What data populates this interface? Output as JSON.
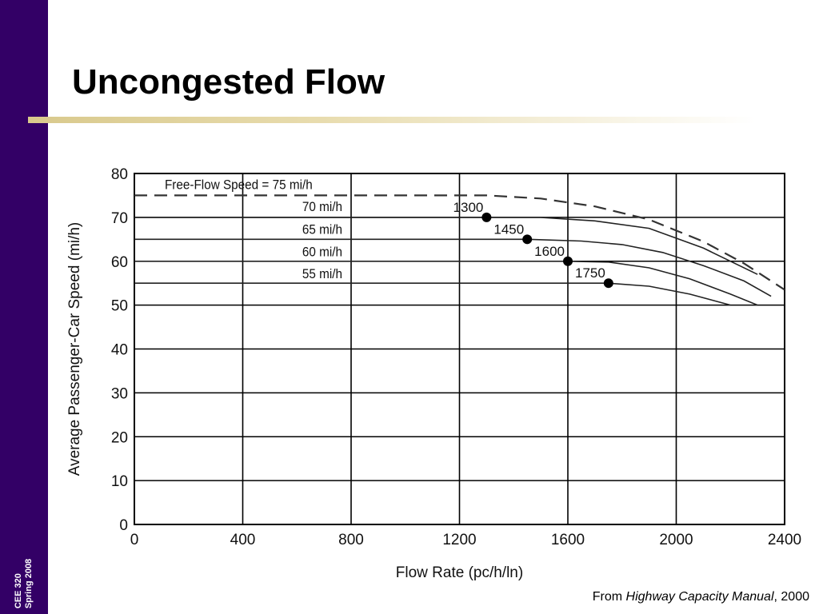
{
  "sidebar": {
    "course": "CEE 320",
    "term": "Spring 2008"
  },
  "slide": {
    "title": "Uncongested Flow"
  },
  "source": {
    "prefix": "From ",
    "work": "Highway Capacity Manual",
    "suffix": ", 2000"
  },
  "colors": {
    "sidebar": "#330066",
    "accent_rule": "#d9c98c"
  },
  "chart_data": {
    "type": "line",
    "xlabel": "Flow Rate (pc/h/ln)",
    "ylabel": "Average Passenger-Car Speed (mi/h)",
    "xlim": [
      0,
      2400
    ],
    "ylim": [
      0,
      80
    ],
    "xticks": [
      0,
      400,
      800,
      1200,
      1600,
      2000,
      2400
    ],
    "yticks": [
      0,
      10,
      20,
      30,
      40,
      50,
      60,
      70,
      80
    ],
    "grid": true,
    "series": [
      {
        "name": "Free-Flow Speed = 75 mi/h",
        "dashed": true,
        "points": [
          [
            0,
            75
          ],
          [
            1300,
            75
          ],
          [
            1500,
            74.3
          ],
          [
            1700,
            72.5
          ],
          [
            1900,
            69.5
          ],
          [
            2100,
            64.5
          ],
          [
            2250,
            59.5
          ],
          [
            2400,
            53.5
          ]
        ]
      },
      {
        "name": "70 mi/h",
        "points": [
          [
            0,
            70
          ],
          [
            1300,
            70
          ],
          [
            1500,
            70
          ],
          [
            1700,
            69.2
          ],
          [
            1900,
            67.5
          ],
          [
            2100,
            63
          ],
          [
            2300,
            57
          ]
        ]
      },
      {
        "name": "65 mi/h",
        "points": [
          [
            0,
            65
          ],
          [
            1450,
            65
          ],
          [
            1650,
            64.6
          ],
          [
            1800,
            63.8
          ],
          [
            1950,
            62
          ],
          [
            2100,
            59
          ],
          [
            2250,
            55.5
          ],
          [
            2350,
            52
          ]
        ]
      },
      {
        "name": "60 mi/h",
        "points": [
          [
            0,
            60
          ],
          [
            1600,
            60
          ],
          [
            1750,
            59.8
          ],
          [
            1900,
            58.5
          ],
          [
            2050,
            56
          ],
          [
            2200,
            52.5
          ],
          [
            2300,
            50
          ]
        ]
      },
      {
        "name": "55 mi/h",
        "points": [
          [
            0,
            55
          ],
          [
            1750,
            55
          ],
          [
            1900,
            54.3
          ],
          [
            2050,
            52.5
          ],
          [
            2200,
            50
          ]
        ]
      }
    ],
    "breakpoints": [
      {
        "label": "1300",
        "x": 1300,
        "y": 70
      },
      {
        "label": "1450",
        "x": 1450,
        "y": 65
      },
      {
        "label": "1600",
        "x": 1600,
        "y": 60
      },
      {
        "label": "1750",
        "x": 1750,
        "y": 55
      }
    ]
  }
}
